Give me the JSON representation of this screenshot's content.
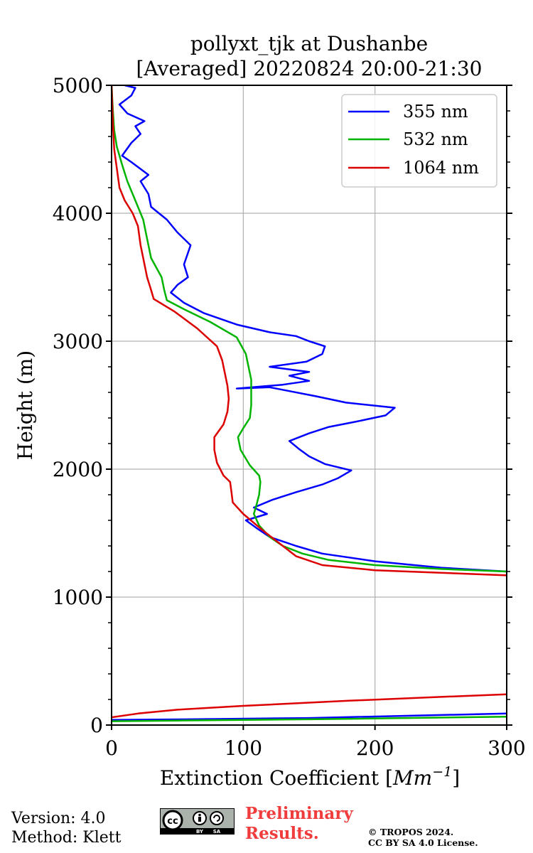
{
  "chart_data": {
    "type": "line",
    "title_lines": [
      "pollyxt_tjk at Dushanbe",
      "[Averaged] 20220824 20:00-21:30"
    ],
    "xlabel": "Extinction Coefficient [",
    "xlabel_unit": "Mm",
    "xlabel_exp": "−1",
    "xlabel_close": "]",
    "ylabel": "Height (m)",
    "xlim": [
      0,
      300
    ],
    "ylim": [
      0,
      5000
    ],
    "xticks": [
      0,
      100,
      200,
      300
    ],
    "yticks": [
      0,
      1000,
      2000,
      3000,
      4000,
      5000
    ],
    "xtick_labels": [
      "0",
      "100",
      "200",
      "300"
    ],
    "ytick_labels": [
      "0",
      "1000",
      "2000",
      "3000",
      "4000",
      "5000"
    ],
    "grid": true,
    "legend_position": "top-right",
    "series": [
      {
        "name": "355 nm",
        "color": "#0000ff",
        "segments": [
          [
            [
              0,
              40
            ],
            [
              60,
              45
            ],
            [
              150,
              55
            ],
            [
              300,
              90
            ]
          ],
          [
            [
              300,
              1200
            ],
            [
              250,
              1230
            ],
            [
              200,
              1280
            ],
            [
              160,
              1340
            ],
            [
              140,
              1400
            ],
            [
              120,
              1470
            ],
            [
              110,
              1540
            ],
            [
              102,
              1600
            ],
            [
              118,
              1650
            ],
            [
              108,
              1700
            ],
            [
              122,
              1760
            ],
            [
              140,
              1820
            ],
            [
              160,
              1880
            ],
            [
              172,
              1930
            ],
            [
              182,
              1990
            ],
            [
              162,
              2040
            ],
            [
              150,
              2100
            ],
            [
              142,
              2160
            ],
            [
              135,
              2220
            ],
            [
              150,
              2280
            ],
            [
              165,
              2330
            ],
            [
              185,
              2370
            ],
            [
              208,
              2420
            ],
            [
              215,
              2480
            ],
            [
              178,
              2520
            ],
            [
              155,
              2570
            ],
            [
              135,
              2610
            ],
            [
              120,
              2640
            ],
            [
              95,
              2630
            ],
            [
              130,
              2660
            ],
            [
              150,
              2690
            ],
            [
              135,
              2730
            ],
            [
              150,
              2760
            ],
            [
              120,
              2800
            ],
            [
              148,
              2840
            ],
            [
              160,
              2900
            ],
            [
              162,
              2960
            ],
            [
              150,
              3000
            ],
            [
              140,
              3040
            ],
            [
              120,
              3070
            ],
            [
              95,
              3130
            ],
            [
              70,
              3220
            ],
            [
              55,
              3300
            ],
            [
              45,
              3380
            ],
            [
              50,
              3440
            ],
            [
              58,
              3500
            ],
            [
              55,
              3600
            ],
            [
              60,
              3750
            ],
            [
              50,
              3850
            ],
            [
              42,
              3950
            ],
            [
              30,
              4050
            ],
            [
              28,
              4150
            ],
            [
              22,
              4250
            ],
            [
              28,
              4300
            ],
            [
              15,
              4400
            ],
            [
              8,
              4450
            ],
            [
              15,
              4550
            ],
            [
              22,
              4620
            ],
            [
              18,
              4680
            ],
            [
              25,
              4720
            ],
            [
              12,
              4780
            ],
            [
              6,
              4850
            ],
            [
              15,
              4920
            ],
            [
              18,
              4980
            ],
            [
              10,
              5000
            ]
          ]
        ]
      },
      {
        "name": "532 nm",
        "color": "#00b400",
        "segments": [
          [
            [
              0,
              30
            ],
            [
              50,
              35
            ],
            [
              150,
              45
            ],
            [
              300,
              65
            ]
          ],
          [
            [
              300,
              1200
            ],
            [
              250,
              1220
            ],
            [
              200,
              1250
            ],
            [
              165,
              1290
            ],
            [
              145,
              1340
            ],
            [
              130,
              1400
            ],
            [
              120,
              1470
            ],
            [
              112,
              1560
            ],
            [
              108,
              1650
            ],
            [
              110,
              1720
            ],
            [
              112,
              1800
            ],
            [
              113,
              1900
            ],
            [
              112,
              1950
            ],
            [
              105,
              2030
            ],
            [
              98,
              2150
            ],
            [
              96,
              2250
            ],
            [
              100,
              2320
            ],
            [
              105,
              2400
            ],
            [
              106,
              2500
            ],
            [
              106,
              2600
            ],
            [
              106,
              2700
            ],
            [
              104,
              2800
            ],
            [
              102,
              2900
            ],
            [
              95,
              3030
            ],
            [
              75,
              3150
            ],
            [
              55,
              3250
            ],
            [
              42,
              3320
            ],
            [
              40,
              3400
            ],
            [
              38,
              3500
            ],
            [
              30,
              3650
            ],
            [
              27,
              3800
            ],
            [
              24,
              3950
            ],
            [
              18,
              4100
            ],
            [
              12,
              4250
            ],
            [
              8,
              4380
            ],
            [
              4,
              4520
            ],
            [
              2,
              4650
            ],
            [
              1,
              4800
            ],
            [
              0,
              5000
            ]
          ]
        ]
      },
      {
        "name": "1064 nm",
        "color": "#dc0000",
        "segments": [
          [
            [
              0,
              60
            ],
            [
              20,
              90
            ],
            [
              50,
              120
            ],
            [
              100,
              150
            ],
            [
              180,
              190
            ],
            [
              250,
              220
            ],
            [
              300,
              240
            ]
          ],
          [
            [
              300,
              1170
            ],
            [
              200,
              1210
            ],
            [
              160,
              1250
            ],
            [
              140,
              1320
            ],
            [
              130,
              1400
            ],
            [
              115,
              1520
            ],
            [
              100,
              1650
            ],
            [
              92,
              1740
            ],
            [
              91,
              1820
            ],
            [
              90,
              1900
            ],
            [
              85,
              1950
            ],
            [
              80,
              2050
            ],
            [
              78,
              2150
            ],
            [
              78,
              2250
            ],
            [
              85,
              2350
            ],
            [
              88,
              2450
            ],
            [
              89,
              2550
            ],
            [
              88,
              2650
            ],
            [
              86,
              2750
            ],
            [
              84,
              2850
            ],
            [
              80,
              2960
            ],
            [
              65,
              3100
            ],
            [
              48,
              3230
            ],
            [
              32,
              3330
            ],
            [
              30,
              3400
            ],
            [
              27,
              3500
            ],
            [
              24,
              3650
            ],
            [
              22,
              3750
            ],
            [
              20,
              3900
            ],
            [
              16,
              4000
            ],
            [
              10,
              4100
            ],
            [
              6,
              4200
            ],
            [
              4,
              4350
            ],
            [
              2,
              4500
            ],
            [
              1,
              4700
            ],
            [
              0,
              5000
            ]
          ]
        ]
      }
    ]
  },
  "footer": {
    "version": "Version: 4.0",
    "method": "Method: Klett",
    "cc_label": "cc",
    "cc_by": "BY",
    "cc_sa": "SA",
    "preliminary_line1": "Preliminary",
    "preliminary_line2": "Results.",
    "copyright_line1": "© TROPOS 2024.",
    "copyright_line2": "CC BY SA 4.0 License."
  }
}
